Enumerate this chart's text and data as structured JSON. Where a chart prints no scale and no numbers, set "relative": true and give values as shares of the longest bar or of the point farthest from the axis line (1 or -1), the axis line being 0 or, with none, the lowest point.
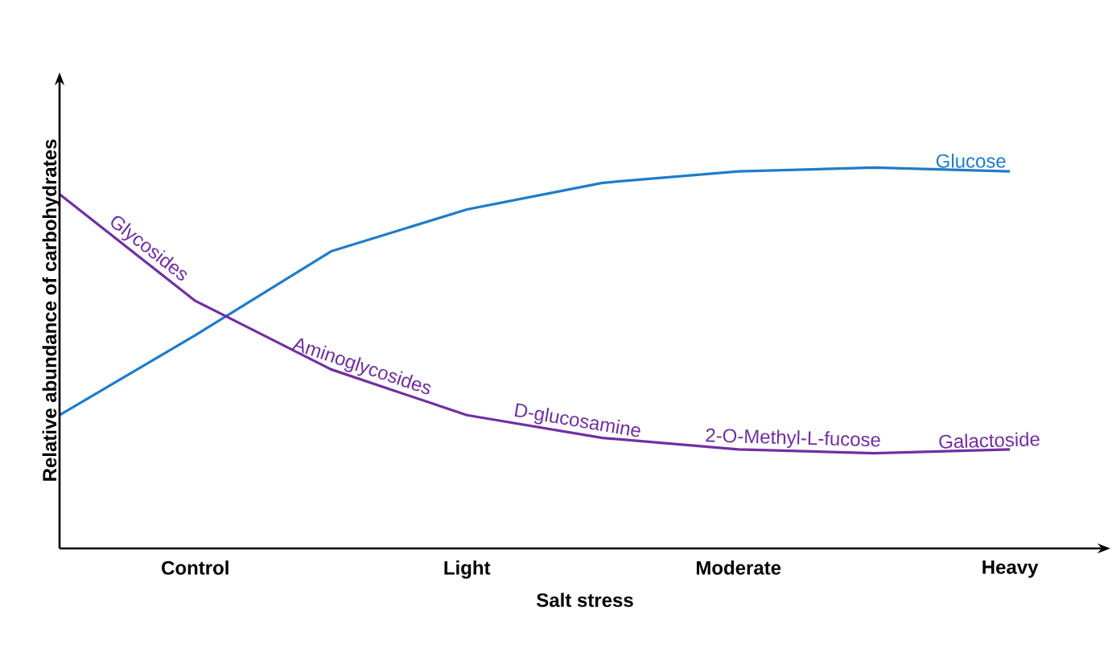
{
  "chart_data": {
    "type": "line",
    "relative": true,
    "xlabel": "Salt stress",
    "ylabel": "Relative abundance of carbohydrates",
    "categories": [
      null,
      "Control",
      null,
      "Light",
      null,
      "Moderate",
      null,
      "Heavy"
    ],
    "series": [
      {
        "name": "Glucose",
        "color": "#1f7cc8",
        "values": [
          0.35,
          0.56,
          0.78,
          0.89,
          0.96,
          0.99,
          1.0,
          0.99
        ]
      },
      {
        "color": "#7030a0",
        "values": [
          0.93,
          0.65,
          0.47,
          0.35,
          0.29,
          0.26,
          0.25,
          0.26
        ]
      }
    ],
    "annotations": [
      "Glycosides",
      "Aminoglycosides",
      "D-glucosamine",
      "2-O-Methyl-L-fucose",
      "Galactoside"
    ]
  }
}
